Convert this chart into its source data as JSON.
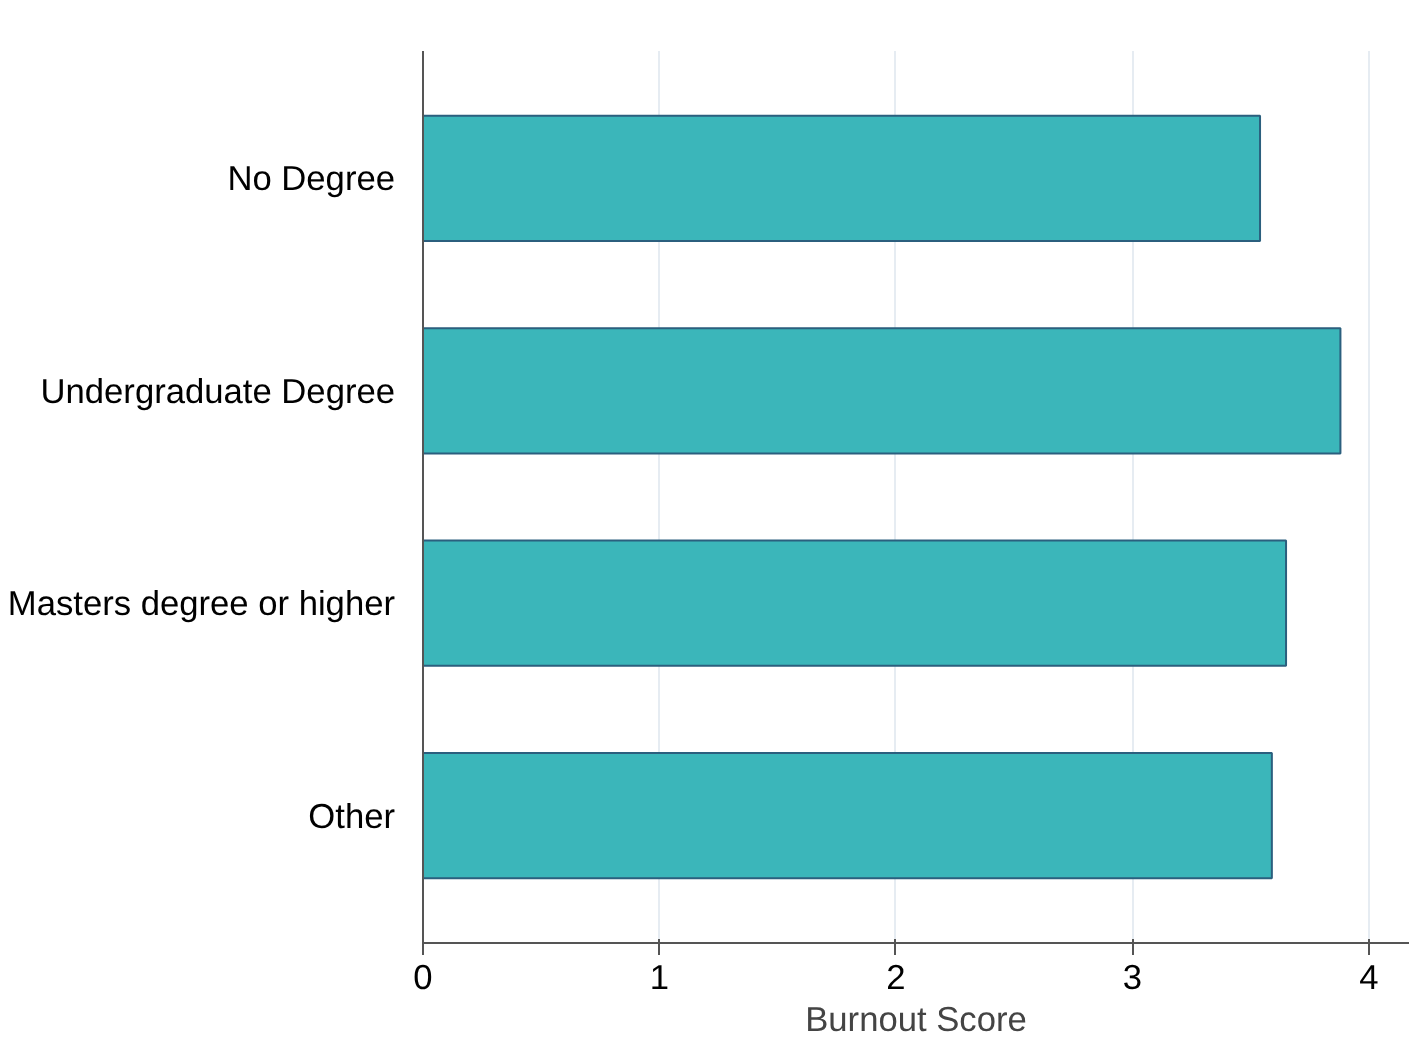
{
  "chart_data": {
    "type": "bar",
    "orientation": "horizontal",
    "xlabel": "Burnout Score",
    "categories": [
      "No Degree",
      "Undergraduate Degree",
      "Masters degree or higher",
      "Other"
    ],
    "values": [
      3.54,
      3.88,
      3.65,
      3.59
    ],
    "color": "#3bb6ba",
    "xlim": [
      0,
      4.17
    ],
    "xticks": [
      0,
      1,
      2,
      3,
      4
    ],
    "grid": "x"
  }
}
